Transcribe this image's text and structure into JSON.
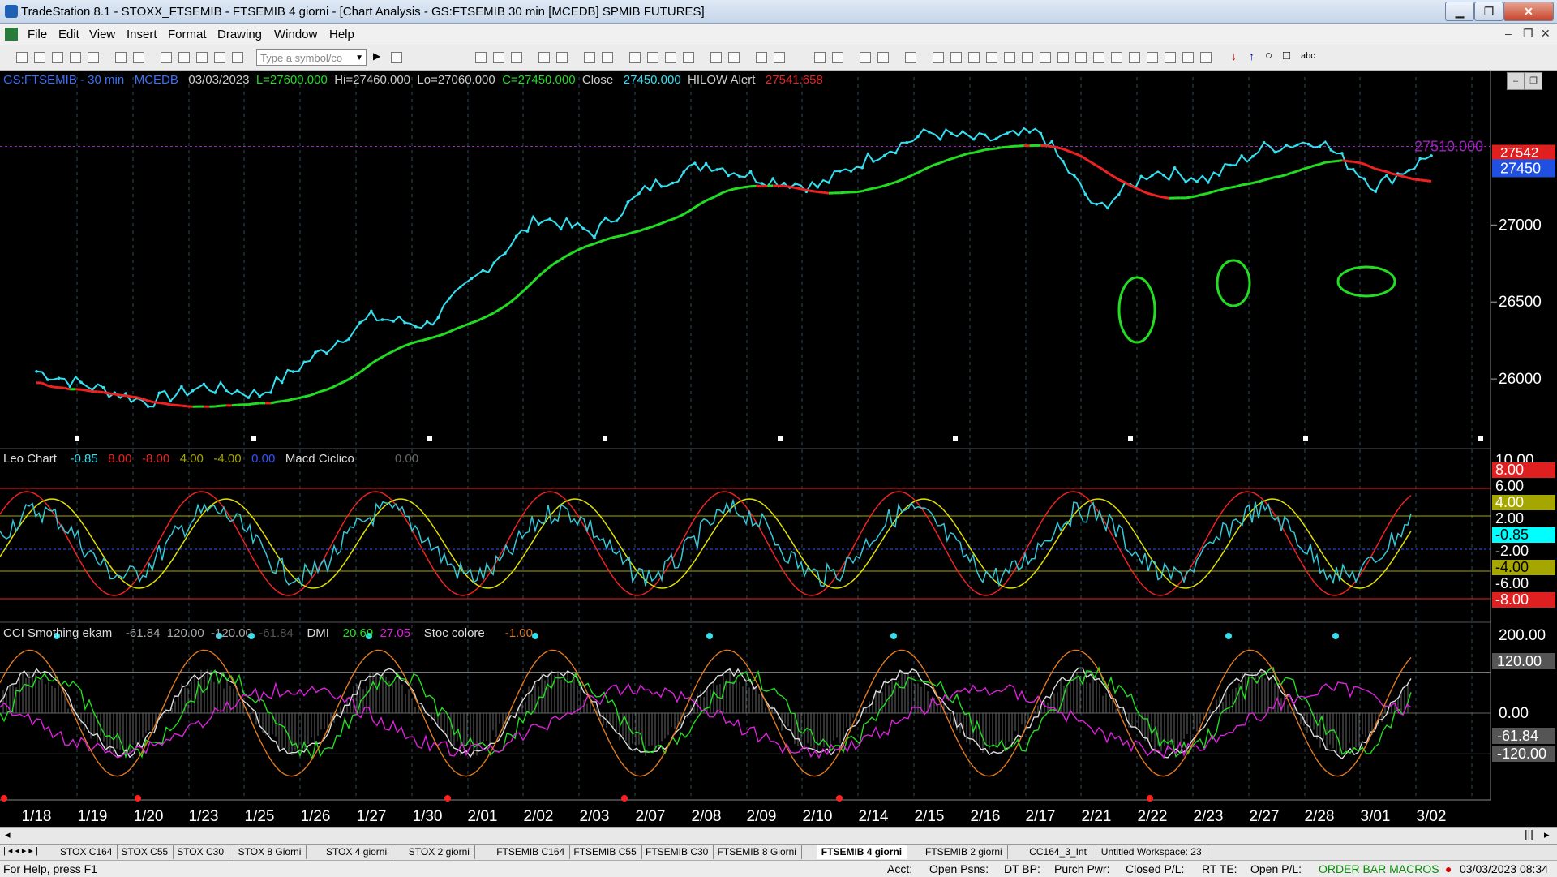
{
  "window": {
    "title": "TradeStation 8.1 - STOXX_FTSEMIB - FTSEMIB  4 giorni - [Chart Analysis - GS:FTSEMIB  30 min  [MCEDB] SPMIB FUTURES]",
    "min": "▁",
    "max": "❐",
    "close": "✕"
  },
  "menu": {
    "items": [
      "File",
      "Edit",
      "View",
      "Insert",
      "Format",
      "Drawing",
      "Window",
      "Help"
    ],
    "mdi_min": "–",
    "mdi_restore": "❐",
    "mdi_close": "✕"
  },
  "toolbar": {
    "symbol_placeholder": "Type a symbol/co",
    "text_tool": "abc"
  },
  "price_panel": {
    "symbol": "GS:FTSEMIB - 30 min",
    "source": "MCEDB",
    "date": "03/03/2023",
    "last": "L=27600.000",
    "high": "Hi=27460.000",
    "low": "Lo=27060.000",
    "close_val": "C=27450.000",
    "close_label": "Close",
    "close_value": "27450.000",
    "alert_label": "HILOW Alert",
    "alert_value": "27541.658",
    "line_label": "27510.000",
    "tag_red": "27542",
    "tag_blue": "27450",
    "axis": [
      "27000",
      "26500",
      "26000"
    ],
    "colors": {
      "price": "#33e0f0",
      "up": "#22dd22",
      "down": "#ee2222",
      "ref": "#a020c0"
    }
  },
  "macd_panel": {
    "name": "Leo Chart",
    "values": [
      "-0.85",
      "8.00",
      "-8.00",
      "4.00",
      "-4.00",
      "0.00"
    ],
    "name2": "Macd Ciclico",
    "value2": "0.00",
    "axis_top": "10.00",
    "tags": [
      "8.00",
      "6.00",
      "4.00",
      "2.00",
      "-0.85",
      "-2.00",
      "-4.00",
      "-6.00",
      "-8.00"
    ]
  },
  "cci_panel": {
    "name": "CCI Smothing ekam",
    "values": [
      "-61.84",
      "120.00",
      "-120.00",
      "-61.84"
    ],
    "dmi_label": "DMI",
    "dmi_values": [
      "20.69",
      "27.05"
    ],
    "stoc_label": "Stoc colore",
    "stoc_value": "-1.00",
    "axis": [
      "200.00",
      "0.00"
    ],
    "tags": [
      "120.00",
      "-61.84",
      "-120.00"
    ]
  },
  "x_axis": [
    "1/18",
    "1/19",
    "1/20",
    "1/23",
    "1/25",
    "1/26",
    "1/27",
    "1/30",
    "2/01",
    "2/02",
    "2/03",
    "2/07",
    "2/08",
    "2/09",
    "2/10",
    "2/14",
    "2/15",
    "2/16",
    "2/17",
    "2/21",
    "2/22",
    "2/23",
    "2/27",
    "2/28",
    "3/01",
    "3/02"
  ],
  "chart_data": {
    "type": "line",
    "x": [
      "1/18",
      "1/19",
      "1/20",
      "1/23",
      "1/25",
      "1/26",
      "1/27",
      "1/30",
      "2/01",
      "2/02",
      "2/03",
      "2/07",
      "2/08",
      "2/09",
      "2/10",
      "2/14",
      "2/15",
      "2/16",
      "2/17",
      "2/21",
      "2/22",
      "2/23",
      "2/27",
      "2/28",
      "3/01",
      "3/02"
    ],
    "series": [
      {
        "name": "GS:FTSEMIB - 30 min",
        "values": [
          26050,
          25950,
          25850,
          25950,
          25900,
          26150,
          26400,
          26350,
          26700,
          27050,
          26950,
          27250,
          27400,
          27300,
          27250,
          27450,
          27600,
          27550,
          27600,
          27100,
          27350,
          27300,
          27500,
          27550,
          27250,
          27450
        ]
      }
    ],
    "ylim": [
      25600,
      27950
    ]
  },
  "tabs": [
    "STOX C164",
    "STOX C55",
    "STOX  C30",
    "STOX  8 Giorni",
    "STOX 4 giorni",
    "STOX  2 giorni",
    "FTSEMIB C164",
    "FTSEMIB C55",
    "FTSEMIB C30",
    "FTSEMIB  8 Giorni",
    "FTSEMIB  4 giorni",
    "FTSEMIB  2 giorni",
    "CC164_3_Int",
    "Untitled Workspace:  23"
  ],
  "active_tab": "FTSEMIB  4 giorni",
  "status": {
    "help": "For Help, press F1",
    "acct": "Acct:",
    "open_psns": "Open Psns:",
    "dt_bp": "DT BP:",
    "purch_pwr": "Purch Pwr:",
    "closed_pl": "Closed P/L:",
    "rt_te": "RT TE:",
    "open_pl": "Open P/L:",
    "macros": "ORDER BAR  MACROS",
    "datetime": "03/03/2023 08:34"
  }
}
